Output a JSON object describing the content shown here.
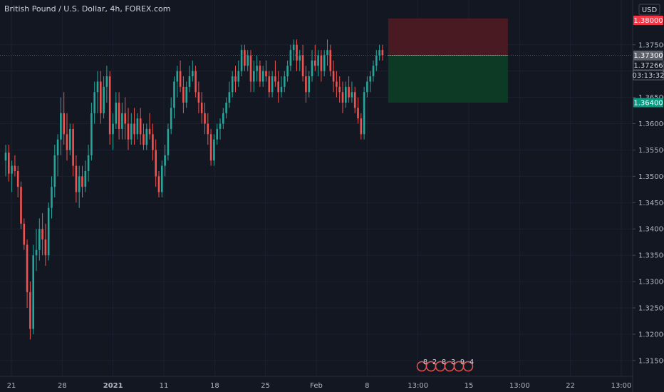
{
  "header": {
    "title": "British Pound / U.S. Dollar, 4h, FOREX.com",
    "currency": "USD"
  },
  "colors": {
    "background": "#131722",
    "up": "#26a69a",
    "down": "#ef5350",
    "stop_zone": "#4a1a22",
    "target_zone": "#0d3a25",
    "stop_tag": "#f23645",
    "target_tag": "#089981",
    "current_tag": "#5d606b"
  },
  "price_axis": {
    "ticks": [
      "1.37500",
      "1.37000",
      "1.36500",
      "1.36000",
      "1.35500",
      "1.35000",
      "1.34500",
      "1.34000",
      "1.33500",
      "1.33000",
      "1.32500",
      "1.32000",
      "1.31500"
    ]
  },
  "price_tags": {
    "stop": "1.38000",
    "current": "1.37300",
    "last": "1.37266",
    "countdown": "03:13:32",
    "target": "1.36400"
  },
  "time_axis": {
    "labels": [
      {
        "text": "21",
        "bold": false
      },
      {
        "text": "28",
        "bold": false
      },
      {
        "text": "2021",
        "bold": true
      },
      {
        "text": "11",
        "bold": false
      },
      {
        "text": "18",
        "bold": false
      },
      {
        "text": "25",
        "bold": false
      },
      {
        "text": "Feb",
        "bold": false
      },
      {
        "text": "8",
        "bold": false
      },
      {
        "text": "13:00",
        "bold": false
      },
      {
        "text": "15",
        "bold": false
      },
      {
        "text": "13:00",
        "bold": false
      },
      {
        "text": "22",
        "bold": false
      },
      {
        "text": "13:00",
        "bold": false
      }
    ]
  },
  "event_markers": [
    "8",
    "2",
    "8",
    "3",
    "9",
    "4"
  ],
  "chart_data": {
    "type": "candlestick",
    "title": "British Pound / U.S. Dollar, 4h, FOREX.com",
    "ylim": [
      1.312,
      1.3835
    ],
    "position": {
      "type": "long",
      "entry": 1.373,
      "stop": 1.38,
      "target": 1.364
    },
    "candles": [
      [
        1.353,
        1.356,
        1.35,
        1.3545
      ],
      [
        1.3545,
        1.356,
        1.349,
        1.3505
      ],
      [
        1.3505,
        1.353,
        1.347,
        1.352
      ],
      [
        1.352,
        1.354,
        1.35,
        1.351
      ],
      [
        1.351,
        1.352,
        1.346,
        1.348
      ],
      [
        1.348,
        1.349,
        1.34,
        1.341
      ],
      [
        1.341,
        1.342,
        1.336,
        1.337
      ],
      [
        1.337,
        1.338,
        1.325,
        1.328
      ],
      [
        1.328,
        1.33,
        1.319,
        1.321
      ],
      [
        1.321,
        1.337,
        1.32,
        1.335
      ],
      [
        1.335,
        1.34,
        1.332,
        1.336
      ],
      [
        1.336,
        1.342,
        1.334,
        1.34
      ],
      [
        1.34,
        1.343,
        1.335,
        1.338
      ],
      [
        1.338,
        1.341,
        1.333,
        1.335
      ],
      [
        1.335,
        1.345,
        1.334,
        1.344
      ],
      [
        1.344,
        1.35,
        1.342,
        1.348
      ],
      [
        1.348,
        1.356,
        1.346,
        1.354
      ],
      [
        1.354,
        1.358,
        1.35,
        1.357
      ],
      [
        1.357,
        1.365,
        1.354,
        1.362
      ],
      [
        1.362,
        1.366,
        1.356,
        1.358
      ],
      [
        1.358,
        1.362,
        1.353,
        1.355
      ],
      [
        1.355,
        1.36,
        1.354,
        1.359
      ],
      [
        1.359,
        1.36,
        1.35,
        1.352
      ],
      [
        1.352,
        1.354,
        1.345,
        1.347
      ],
      [
        1.347,
        1.352,
        1.344,
        1.35
      ],
      [
        1.35,
        1.352,
        1.346,
        1.348
      ],
      [
        1.348,
        1.353,
        1.347,
        1.351
      ],
      [
        1.351,
        1.356,
        1.349,
        1.354
      ],
      [
        1.354,
        1.364,
        1.353,
        1.362
      ],
      [
        1.362,
        1.368,
        1.36,
        1.366
      ],
      [
        1.366,
        1.37,
        1.362,
        1.368
      ],
      [
        1.368,
        1.37,
        1.36,
        1.362
      ],
      [
        1.362,
        1.369,
        1.361,
        1.367
      ],
      [
        1.367,
        1.371,
        1.364,
        1.369
      ],
      [
        1.369,
        1.37,
        1.356,
        1.358
      ],
      [
        1.358,
        1.362,
        1.355,
        1.36
      ],
      [
        1.36,
        1.366,
        1.359,
        1.364
      ],
      [
        1.364,
        1.366,
        1.357,
        1.359
      ],
      [
        1.359,
        1.364,
        1.357,
        1.362
      ],
      [
        1.362,
        1.365,
        1.357,
        1.36
      ],
      [
        1.36,
        1.363,
        1.355,
        1.357
      ],
      [
        1.357,
        1.362,
        1.356,
        1.36
      ],
      [
        1.36,
        1.363,
        1.356,
        1.358
      ],
      [
        1.358,
        1.362,
        1.357,
        1.361
      ],
      [
        1.361,
        1.363,
        1.356,
        1.358
      ],
      [
        1.358,
        1.36,
        1.355,
        1.356
      ],
      [
        1.356,
        1.36,
        1.355,
        1.359
      ],
      [
        1.359,
        1.362,
        1.357,
        1.358
      ],
      [
        1.358,
        1.36,
        1.353,
        1.355
      ],
      [
        1.355,
        1.357,
        1.348,
        1.35
      ],
      [
        1.35,
        1.351,
        1.346,
        1.347
      ],
      [
        1.347,
        1.353,
        1.346,
        1.352
      ],
      [
        1.352,
        1.356,
        1.35,
        1.354
      ],
      [
        1.354,
        1.36,
        1.353,
        1.359
      ],
      [
        1.359,
        1.365,
        1.358,
        1.363
      ],
      [
        1.363,
        1.369,
        1.361,
        1.368
      ],
      [
        1.368,
        1.371,
        1.365,
        1.37
      ],
      [
        1.37,
        1.372,
        1.366,
        1.367
      ],
      [
        1.367,
        1.369,
        1.362,
        1.364
      ],
      [
        1.364,
        1.368,
        1.363,
        1.367
      ],
      [
        1.367,
        1.371,
        1.366,
        1.369
      ],
      [
        1.369,
        1.372,
        1.368,
        1.37
      ],
      [
        1.37,
        1.371,
        1.365,
        1.366
      ],
      [
        1.366,
        1.368,
        1.362,
        1.364
      ],
      [
        1.364,
        1.366,
        1.36,
        1.362
      ],
      [
        1.362,
        1.364,
        1.358,
        1.36
      ],
      [
        1.36,
        1.362,
        1.356,
        1.358
      ],
      [
        1.358,
        1.359,
        1.352,
        1.353
      ],
      [
        1.353,
        1.358,
        1.352,
        1.357
      ],
      [
        1.357,
        1.36,
        1.356,
        1.359
      ],
      [
        1.359,
        1.361,
        1.357,
        1.36
      ],
      [
        1.36,
        1.363,
        1.359,
        1.362
      ],
      [
        1.362,
        1.365,
        1.361,
        1.364
      ],
      [
        1.364,
        1.368,
        1.363,
        1.366
      ],
      [
        1.366,
        1.37,
        1.365,
        1.369
      ],
      [
        1.369,
        1.371,
        1.366,
        1.368
      ],
      [
        1.368,
        1.372,
        1.367,
        1.37
      ],
      [
        1.37,
        1.375,
        1.369,
        1.374
      ],
      [
        1.374,
        1.375,
        1.37,
        1.371
      ],
      [
        1.371,
        1.374,
        1.37,
        1.373
      ],
      [
        1.373,
        1.374,
        1.366,
        1.368
      ],
      [
        1.368,
        1.372,
        1.366,
        1.37
      ],
      [
        1.37,
        1.373,
        1.368,
        1.371
      ],
      [
        1.371,
        1.372,
        1.367,
        1.368
      ],
      [
        1.368,
        1.371,
        1.367,
        1.37
      ],
      [
        1.37,
        1.372,
        1.368,
        1.369
      ],
      [
        1.369,
        1.37,
        1.365,
        1.366
      ],
      [
        1.366,
        1.37,
        1.365,
        1.369
      ],
      [
        1.369,
        1.372,
        1.367,
        1.368
      ],
      [
        1.368,
        1.37,
        1.364,
        1.366
      ],
      [
        1.366,
        1.369,
        1.365,
        1.367
      ],
      [
        1.367,
        1.37,
        1.366,
        1.369
      ],
      [
        1.369,
        1.372,
        1.368,
        1.371
      ],
      [
        1.371,
        1.375,
        1.37,
        1.374
      ],
      [
        1.374,
        1.376,
        1.372,
        1.375
      ],
      [
        1.375,
        1.376,
        1.37,
        1.372
      ],
      [
        1.372,
        1.374,
        1.37,
        1.373
      ],
      [
        1.373,
        1.375,
        1.368,
        1.369
      ],
      [
        1.369,
        1.371,
        1.364,
        1.366
      ],
      [
        1.366,
        1.37,
        1.365,
        1.369
      ],
      [
        1.369,
        1.374,
        1.368,
        1.372
      ],
      [
        1.372,
        1.375,
        1.37,
        1.371
      ],
      [
        1.371,
        1.374,
        1.369,
        1.373
      ],
      [
        1.373,
        1.374,
        1.368,
        1.37
      ],
      [
        1.37,
        1.374,
        1.369,
        1.373
      ],
      [
        1.373,
        1.376,
        1.371,
        1.374
      ],
      [
        1.374,
        1.375,
        1.369,
        1.37
      ],
      [
        1.37,
        1.372,
        1.366,
        1.368
      ],
      [
        1.368,
        1.37,
        1.365,
        1.367
      ],
      [
        1.367,
        1.369,
        1.364,
        1.366
      ],
      [
        1.366,
        1.368,
        1.362,
        1.364
      ],
      [
        1.364,
        1.368,
        1.363,
        1.367
      ],
      [
        1.367,
        1.369,
        1.364,
        1.365
      ],
      [
        1.365,
        1.368,
        1.364,
        1.366
      ],
      [
        1.366,
        1.367,
        1.362,
        1.363
      ],
      [
        1.363,
        1.365,
        1.36,
        1.361
      ],
      [
        1.361,
        1.362,
        1.357,
        1.358
      ],
      [
        1.358,
        1.367,
        1.357,
        1.366
      ],
      [
        1.366,
        1.369,
        1.365,
        1.368
      ],
      [
        1.368,
        1.37,
        1.366,
        1.369
      ],
      [
        1.369,
        1.372,
        1.368,
        1.371
      ],
      [
        1.371,
        1.374,
        1.37,
        1.373
      ],
      [
        1.373,
        1.375,
        1.372,
        1.374
      ],
      [
        1.374,
        1.375,
        1.372,
        1.373
      ]
    ]
  }
}
